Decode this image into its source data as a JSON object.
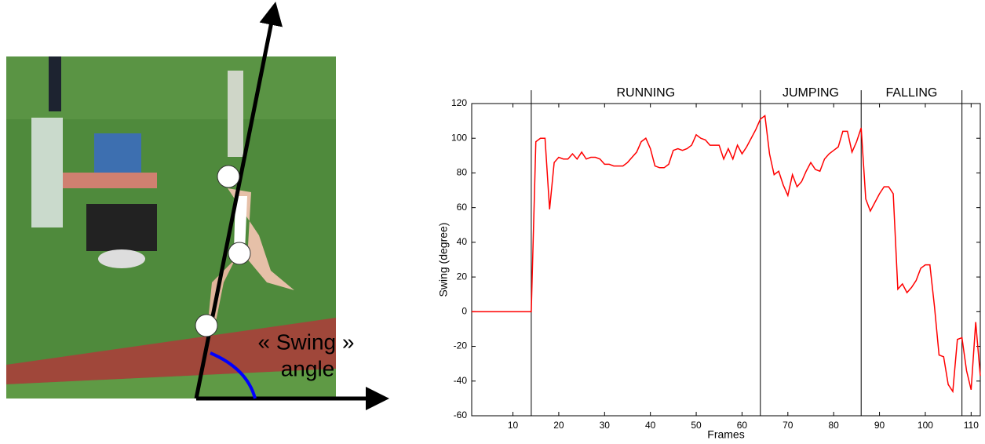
{
  "annotation": [
    "« Swing »",
    "angle"
  ],
  "chart_data": {
    "type": "line",
    "xlabel": "Frames",
    "ylabel": "Swing (degree)",
    "x": [
      1,
      2,
      3,
      4,
      5,
      6,
      7,
      8,
      9,
      10,
      11,
      12,
      13,
      14,
      15,
      16,
      17,
      18,
      19,
      20,
      21,
      22,
      23,
      24,
      25,
      26,
      27,
      28,
      29,
      30,
      31,
      32,
      33,
      34,
      35,
      36,
      37,
      38,
      39,
      40,
      41,
      42,
      43,
      44,
      45,
      46,
      47,
      48,
      49,
      50,
      51,
      52,
      53,
      54,
      55,
      56,
      57,
      58,
      59,
      60,
      61,
      62,
      63,
      64,
      65,
      66,
      67,
      68,
      69,
      70,
      71,
      72,
      73,
      74,
      75,
      76,
      77,
      78,
      79,
      80,
      81,
      82,
      83,
      84,
      85,
      86,
      87,
      88,
      89,
      90,
      91,
      92,
      93,
      94,
      95,
      96,
      97,
      98,
      99,
      100,
      101,
      102,
      103,
      104,
      105,
      106,
      107,
      108,
      109,
      110,
      111,
      112
    ],
    "values": [
      0,
      0,
      0,
      0,
      0,
      0,
      0,
      0,
      0,
      0,
      0,
      0,
      0,
      0,
      98,
      100,
      100,
      59,
      86,
      89,
      88,
      88,
      91,
      88,
      92,
      88,
      89,
      89,
      88,
      85,
      85,
      84,
      84,
      84,
      86,
      89,
      92,
      98,
      100,
      94,
      84,
      83,
      83,
      85,
      93,
      94,
      93,
      94,
      96,
      102,
      100,
      99,
      96,
      96,
      96,
      88,
      94,
      88,
      96,
      91,
      95,
      100,
      105,
      111,
      113,
      91,
      79,
      81,
      73,
      67,
      79,
      72,
      75,
      81,
      86,
      82,
      81,
      88,
      91,
      93,
      95,
      104,
      104,
      92,
      98,
      106,
      65,
      58,
      63,
      68,
      72,
      72,
      68,
      13,
      16,
      11,
      14,
      18,
      25,
      27,
      27,
      3,
      -25,
      -26,
      -42,
      -46,
      -16,
      -15,
      -34,
      -45,
      -6,
      -37
    ],
    "color": "#ff0000",
    "xlim": [
      1,
      112
    ],
    "ylim": [
      -60,
      120
    ],
    "xticks": [
      10,
      20,
      30,
      40,
      50,
      60,
      70,
      80,
      90,
      100,
      110
    ],
    "yticks": [
      -60,
      -40,
      -20,
      0,
      20,
      40,
      60,
      80,
      100,
      120
    ],
    "phase_boundaries": [
      14,
      64,
      86,
      108
    ],
    "phase_labels": [
      "RUNNING",
      "JUMPING",
      "FALLING"
    ]
  }
}
